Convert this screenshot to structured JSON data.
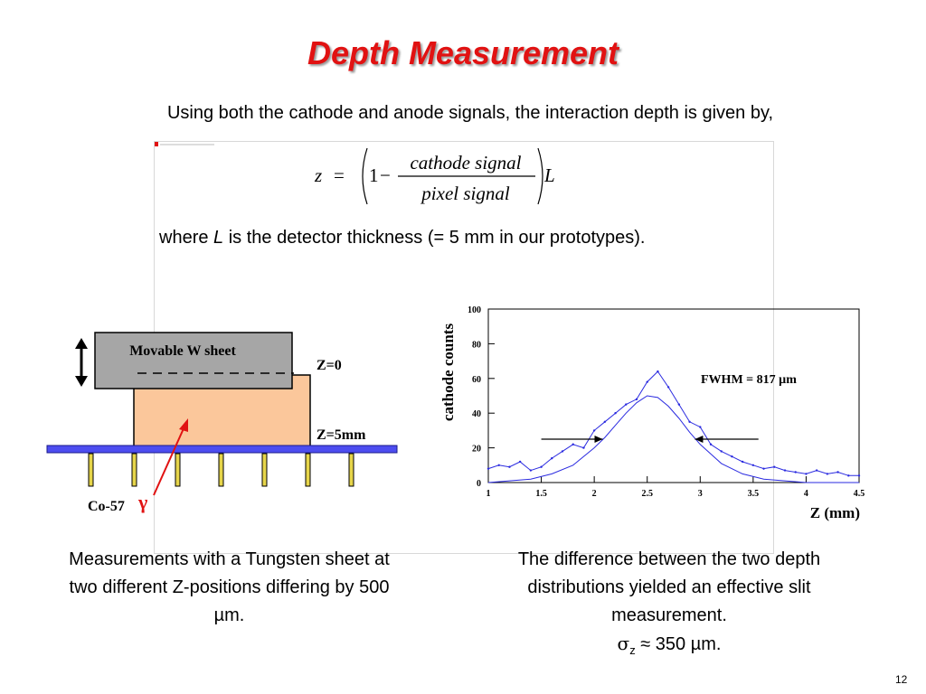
{
  "title": "Depth Measurement",
  "intro": "Using both the cathode and anode signals, the interaction depth is given by,",
  "formula": {
    "lhs": "z",
    "equals": "=",
    "one": "1",
    "minus": "−",
    "numerator": "cathode signal",
    "denominator": "pixel signal",
    "thickness_symbol": "L"
  },
  "where_text": {
    "prefix": "where ",
    "symbol": "L",
    "suffix": " is the detector thickness (= 5 mm in our prototypes)."
  },
  "diagram": {
    "sheet_label": "Movable W sheet",
    "z0_label": "Z=0",
    "z5_label": "Z=5mm",
    "source_label": "Co-57",
    "gamma_label": "γ",
    "colors": {
      "sheet": "#a6a6a6",
      "crystal": "#fbc79b",
      "board": "#4d4df0",
      "pins": "#e6d54a",
      "gamma_arrow": "#e11212"
    }
  },
  "caption_left": "Measurements with a Tungsten sheet at two different Z-positions differing by 500 µm.",
  "caption_right_lines": [
    "The difference between the two depth distributions yielded an effective slit measurement."
  ],
  "sigma": {
    "symbol": "σ",
    "subscript": "z",
    "value_text": " ≈ 350 µm."
  },
  "page_number": "12",
  "chart_data": {
    "type": "line",
    "xlabel": "Z (mm)",
    "ylabel": "cathode counts",
    "xlim": [
      1,
      4.5
    ],
    "ylim": [
      0,
      100
    ],
    "xticks": [
      "1",
      "1.5",
      "2",
      "2.5",
      "3",
      "3.5",
      "4",
      "4.5"
    ],
    "yticks": [
      "0",
      "20",
      "40",
      "60",
      "80",
      "100"
    ],
    "annotation": "FWHM = 817 µm",
    "series_color": "#2a2ae0",
    "grid": false,
    "series": [
      {
        "x": [
          1.0,
          1.1,
          1.2,
          1.3,
          1.4,
          1.5,
          1.6,
          1.7,
          1.8,
          1.9,
          2.0,
          2.1,
          2.2,
          2.3,
          2.4,
          2.5,
          2.6,
          2.7,
          2.8,
          2.9,
          3.0,
          3.1,
          3.2,
          3.3,
          3.4,
          3.5,
          3.6,
          3.7,
          3.8,
          3.9,
          4.0,
          4.1,
          4.2,
          4.3,
          4.4,
          4.5
        ],
        "y": [
          8,
          10,
          9,
          12,
          7,
          9,
          14,
          18,
          22,
          20,
          30,
          35,
          40,
          45,
          48,
          58,
          64,
          55,
          45,
          35,
          32,
          22,
          18,
          15,
          12,
          10,
          8,
          9,
          7,
          6,
          5,
          7,
          5,
          6,
          4,
          4
        ]
      },
      {
        "x": [
          1.0,
          1.2,
          1.4,
          1.6,
          1.8,
          2.0,
          2.1,
          2.2,
          2.3,
          2.4,
          2.5,
          2.6,
          2.7,
          2.8,
          2.9,
          3.0,
          3.2,
          3.4,
          3.6,
          3.8,
          4.0,
          4.2,
          4.5
        ],
        "y": [
          0,
          1,
          2,
          5,
          10,
          20,
          26,
          33,
          40,
          46,
          50,
          49,
          44,
          37,
          29,
          22,
          11,
          5,
          2,
          1,
          0,
          0,
          0
        ]
      }
    ],
    "fwhm_arrows": {
      "left": {
        "from": 1.5,
        "to": 2.08,
        "y": 25
      },
      "right": {
        "from": 3.55,
        "to": 2.95,
        "y": 25
      }
    }
  }
}
